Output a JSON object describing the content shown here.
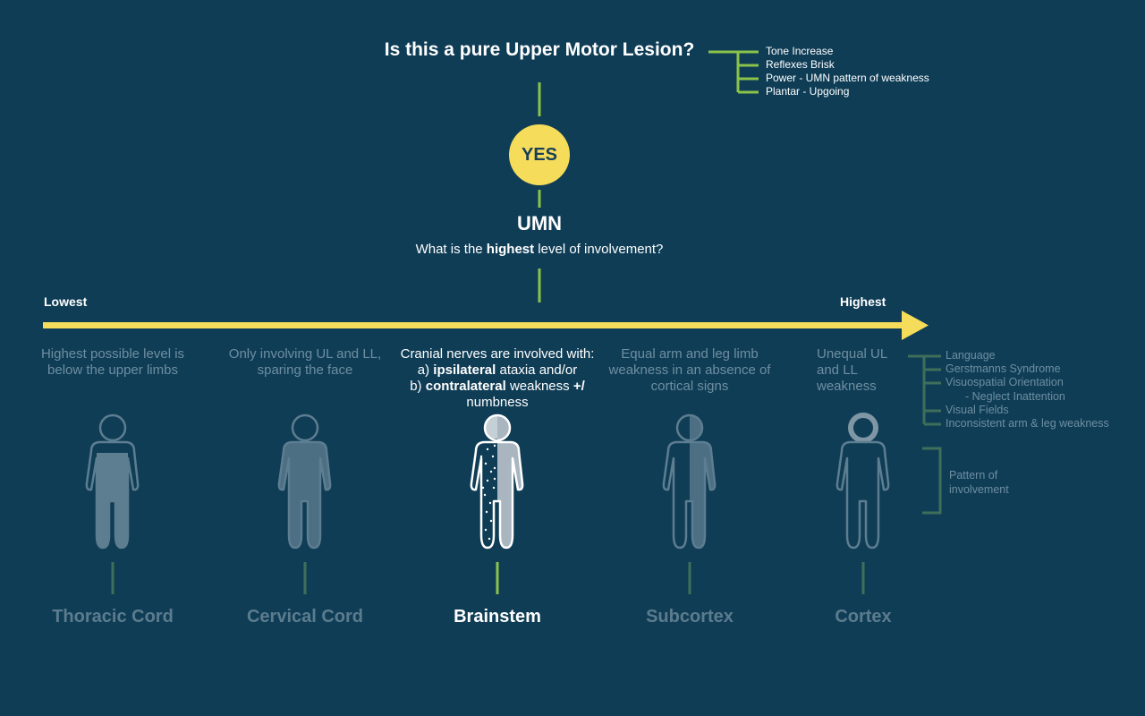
{
  "header": {
    "question": "Is this a pure Upper Motor Lesion?",
    "criteria": [
      "Tone Increase",
      "Reflexes Brisk",
      "Power - UMN pattern of weakness",
      "Plantar - Upgoing"
    ]
  },
  "decision": {
    "yes_label": "YES"
  },
  "umn": {
    "title": "UMN",
    "question_before": "What is the ",
    "question_bold": "highest",
    "question_after": " level of involvement?"
  },
  "axis": {
    "left_label": "Lowest",
    "right_label": "Highest"
  },
  "levels": [
    {
      "name": "Thoracic Cord",
      "desc_line1": "Highest possible level is",
      "desc_line2": "below the upper limbs"
    },
    {
      "name": "Cervical Cord",
      "desc_line1": "Only involving UL and LL,",
      "desc_line2": "sparing the face"
    },
    {
      "name": "Brainstem",
      "desc_line1": "Cranial nerves are involved with:",
      "desc_line2_pre": "a) ",
      "desc_line2_bold": "ipsilateral",
      "desc_line2_post": " ataxia and/or",
      "desc_line3_pre": "b) ",
      "desc_line3_bold": "contralateral",
      "desc_line3_post": " weakness ",
      "desc_line3_plus": "+/",
      "desc_line4": "numbness"
    },
    {
      "name": "Subcortex",
      "desc_line1": "Equal arm and leg limb",
      "desc_line2": "weakness in an absence of",
      "desc_line3": "cortical signs"
    },
    {
      "name": "Cortex",
      "desc_line1": "Unequal UL",
      "desc_line2": "and LL",
      "desc_line3": "weakness"
    }
  ],
  "cortex_signs": [
    "Language",
    "Gerstmanns Syndrome",
    "Visuospatial Orientation",
    "- Neglect Inattention",
    "Visual Fields",
    "Inconsistent arm & leg weakness"
  ],
  "pattern": {
    "line1": "Pattern of",
    "line2": "involvement"
  },
  "colors": {
    "background": "#0f3d56",
    "accent_yellow": "#f5dc5a",
    "accent_green": "#8bc34a",
    "muted_green": "#3f6e5a",
    "muted_text": "#6e8ea0"
  }
}
